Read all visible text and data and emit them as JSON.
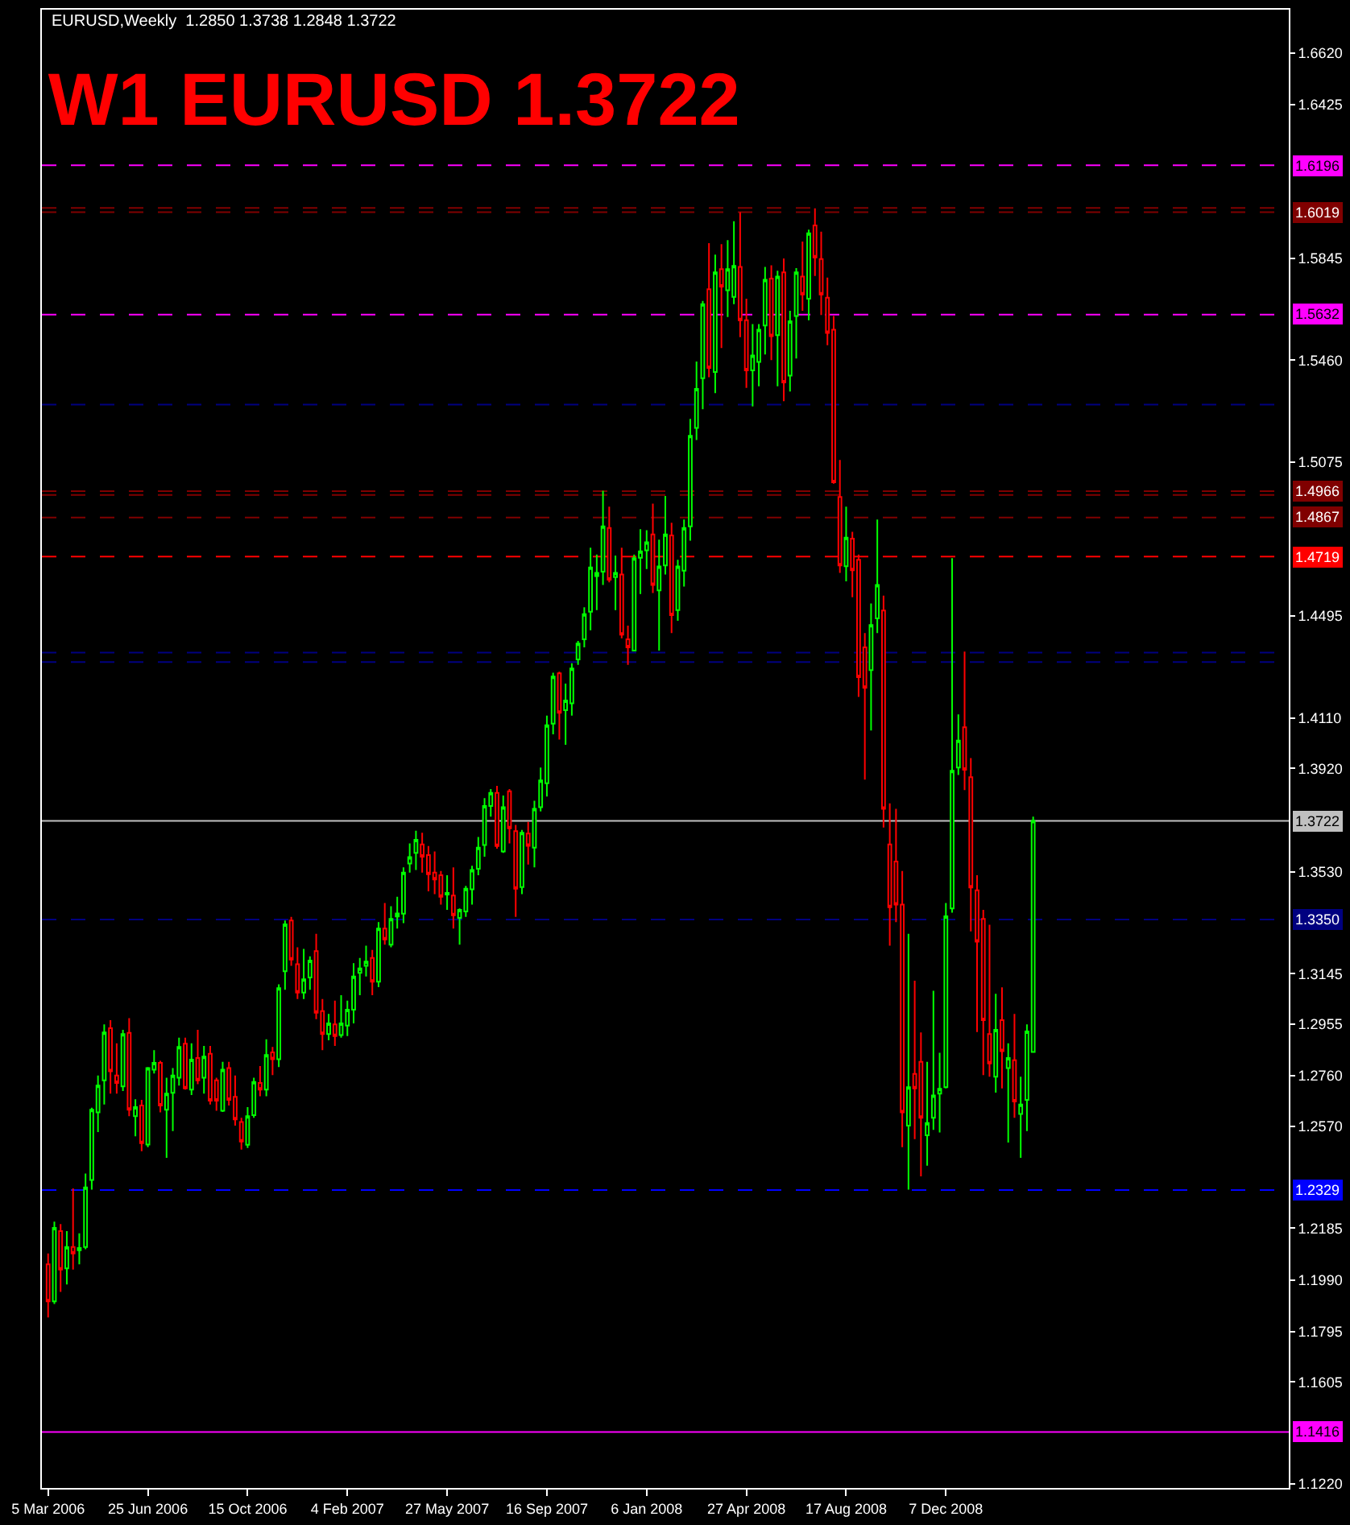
{
  "chart_data": {
    "type": "candlestick",
    "title": "W1 EURUSD 1.3722",
    "subtitle": "EURUSD,Weekly  1.2850 1.3738 1.2848 1.3722",
    "colors": [
      "#ff0000",
      "#00ff00",
      "#ff0000",
      "#00ff00",
      "#ff0000",
      "#00ff00",
      "#00ff00",
      "#00ff00",
      "#00ff00",
      "#00ff00",
      "#ff0000",
      "#ff0000",
      "#00ff00",
      "#ff0000",
      "#00ff00",
      "#ff0000",
      "#00ff00",
      "#00ff00",
      "#ff0000",
      "#00ff00",
      "#00ff00",
      "#00ff00",
      "#ff0000",
      "#00ff00",
      "#ff0000",
      "#00ff00",
      "#ff0000",
      "#ff0000",
      "#00ff00",
      "#ff0000",
      "#ff0000",
      "#ff0000",
      "#00ff00",
      "#00ff00",
      "#ff0000",
      "#00ff00",
      "#ff0000",
      "#00ff00",
      "#00ff00",
      "#ff0000",
      "#ff0000",
      "#00ff00",
      "#00ff00",
      "#ff0000",
      "#ff0000",
      "#00ff00",
      "#ff0000",
      "#00ff00",
      "#00ff00",
      "#00ff00",
      "#00ff00",
      "#00ff00",
      "#ff0000",
      "#00ff00",
      "#ff0000",
      "#00ff00",
      "#00ff00",
      "#00ff00",
      "#00ff00",
      "#00ff00",
      "#ff0000",
      "#ff0000",
      "#ff0000",
      "#ff0000",
      "#00ff00",
      "#ff0000",
      "#00ff00",
      "#00ff00",
      "#00ff00",
      "#00ff00",
      "#00ff00",
      "#00ff00",
      "#ff0000",
      "#00ff00",
      "#ff0000",
      "#ff0000",
      "#00ff00",
      "#ff0000",
      "#00ff00",
      "#00ff00",
      "#00ff00",
      "#00ff00",
      "#ff0000",
      "#00ff00",
      "#00ff00",
      "#00ff00",
      "#00ff00",
      "#00ff00",
      "#00ff00",
      "#00ff00",
      "#ff0000",
      "#00ff00",
      "#ff0000",
      "#ff0000",
      "#00ff00",
      "#00ff00",
      "#00ff00",
      "#ff0000",
      "#00ff00",
      "#00ff00",
      "#ff0000",
      "#00ff00",
      "#00ff00",
      "#00ff00",
      "#00ff00",
      "#00ff00",
      "#ff0000",
      "#00ff00",
      "#ff0000",
      "#00ff00",
      "#00ff00",
      "#ff0000",
      "#ff0000",
      "#00ff00",
      "#00ff00",
      "#00ff00",
      "#ff0000",
      "#00ff00",
      "#ff0000",
      "#00ff00",
      "#00ff00",
      "#ff0000",
      "#00ff00",
      "#ff0000",
      "#ff0000",
      "#ff0000",
      "#ff0000",
      "#ff0000",
      "#00ff00",
      "#ff0000",
      "#ff0000",
      "#ff0000",
      "#00ff00",
      "#00ff00",
      "#ff0000",
      "#ff0000",
      "#ff0000",
      "#ff0000",
      "#00ff00",
      "#ff0000",
      "#ff0000",
      "#00ff00",
      "#00ff00",
      "#00ff00",
      "#00ff00",
      "#00ff00",
      "#00ff00",
      "#ff0000",
      "#ff0000",
      "#ff0000",
      "#ff0000",
      "#ff0000",
      "#00ff00",
      "#ff0000",
      "#00ff00",
      "#ff0000",
      "#00ff00",
      "#00ff00",
      "#00ff00"
    ],
    "x": [
      "2006-03-05",
      "2006-03-12",
      "2006-03-19",
      "2006-03-26",
      "2006-04-02",
      "2006-04-09",
      "2006-04-16",
      "2006-04-23",
      "2006-04-30",
      "2006-05-07",
      "2006-05-14",
      "2006-05-21",
      "2006-05-28",
      "2006-06-04",
      "2006-06-11",
      "2006-06-18",
      "2006-06-25",
      "2006-07-02",
      "2006-07-09",
      "2006-07-16",
      "2006-07-23",
      "2006-07-30",
      "2006-08-06",
      "2006-08-13",
      "2006-08-20",
      "2006-08-27",
      "2006-09-03",
      "2006-09-10",
      "2006-09-17",
      "2006-09-24",
      "2006-10-01",
      "2006-10-08",
      "2006-10-15",
      "2006-10-22",
      "2006-10-29",
      "2006-11-05",
      "2006-11-12",
      "2006-11-19",
      "2006-11-26",
      "2006-12-03",
      "2006-12-10",
      "2006-12-17",
      "2006-12-24",
      "2006-12-31",
      "2007-01-07",
      "2007-01-14",
      "2007-01-21",
      "2007-01-28",
      "2007-02-04",
      "2007-02-11",
      "2007-02-18",
      "2007-02-25",
      "2007-03-04",
      "2007-03-11",
      "2007-03-18",
      "2007-03-25",
      "2007-04-01",
      "2007-04-08",
      "2007-04-15",
      "2007-04-22",
      "2007-04-29",
      "2007-05-06",
      "2007-05-13",
      "2007-05-20",
      "2007-05-27",
      "2007-06-03",
      "2007-06-10",
      "2007-06-17",
      "2007-06-24",
      "2007-07-01",
      "2007-07-08",
      "2007-07-15",
      "2007-07-22",
      "2007-07-29",
      "2007-08-05",
      "2007-08-12",
      "2007-08-19",
      "2007-08-26",
      "2007-09-02",
      "2007-09-09",
      "2007-09-16",
      "2007-09-23",
      "2007-09-30",
      "2007-10-07",
      "2007-10-14",
      "2007-10-21",
      "2007-10-28",
      "2007-11-04",
      "2007-11-11",
      "2007-11-18",
      "2007-11-25",
      "2007-12-02",
      "2007-12-09",
      "2007-12-16",
      "2007-12-23",
      "2007-12-30",
      "2008-01-06",
      "2008-01-13",
      "2008-01-20",
      "2008-01-27",
      "2008-02-03",
      "2008-02-10",
      "2008-02-17",
      "2008-02-24",
      "2008-03-02",
      "2008-03-09",
      "2008-03-16",
      "2008-03-23",
      "2008-03-30",
      "2008-04-06",
      "2008-04-13",
      "2008-04-20",
      "2008-04-27",
      "2008-05-04",
      "2008-05-11",
      "2008-05-18",
      "2008-05-25",
      "2008-06-01",
      "2008-06-08",
      "2008-06-15",
      "2008-06-22",
      "2008-06-29",
      "2008-07-06",
      "2008-07-13",
      "2008-07-20",
      "2008-07-27",
      "2008-08-03",
      "2008-08-10",
      "2008-08-17",
      "2008-08-24",
      "2008-08-31",
      "2008-09-07",
      "2008-09-14",
      "2008-09-21",
      "2008-09-28",
      "2008-10-05",
      "2008-10-12",
      "2008-10-19",
      "2008-10-26",
      "2008-11-02",
      "2008-11-09",
      "2008-11-16",
      "2008-11-23",
      "2008-11-30",
      "2008-12-07",
      "2008-12-14",
      "2008-12-21",
      "2008-12-28",
      "2009-01-04",
      "2009-01-11",
      "2009-01-18",
      "2009-01-25",
      "2009-02-01",
      "2009-02-08",
      "2009-02-15",
      "2009-02-22",
      "2009-03-01",
      "2009-03-08",
      "2009-03-15"
    ],
    "ohlc": [
      [
        1.2049,
        1.209,
        1.1848,
        1.1909
      ],
      [
        1.1909,
        1.221,
        1.1899,
        1.2186
      ],
      [
        1.2174,
        1.2201,
        1.1945,
        1.2029
      ],
      [
        1.2034,
        1.2174,
        1.1973,
        1.2114
      ],
      [
        1.2114,
        1.2335,
        1.2029,
        1.209
      ],
      [
        1.2102,
        1.2166,
        1.2049,
        1.211
      ],
      [
        1.2114,
        1.2391,
        1.2106,
        1.2339
      ],
      [
        1.2367,
        1.264,
        1.2331,
        1.2632
      ],
      [
        1.2622,
        1.2761,
        1.2548,
        1.2723
      ],
      [
        1.2743,
        1.2954,
        1.2652,
        1.2924
      ],
      [
        1.294,
        1.297,
        1.2693,
        1.2777
      ],
      [
        1.2761,
        1.2883,
        1.2693,
        1.2733
      ],
      [
        1.272,
        1.2934,
        1.2703,
        1.2918
      ],
      [
        1.2922,
        1.2978,
        1.2608,
        1.2632
      ],
      [
        1.2608,
        1.2672,
        1.2532,
        1.2642
      ],
      [
        1.2648,
        1.2669,
        1.2476,
        1.2506
      ],
      [
        1.2501,
        1.2793,
        1.2491,
        1.2789
      ],
      [
        1.2783,
        1.2857,
        1.2769,
        1.2809
      ],
      [
        1.2809,
        1.2817,
        1.2622,
        1.2648
      ],
      [
        1.2632,
        1.2753,
        1.2451,
        1.2693
      ],
      [
        1.2696,
        1.2789,
        1.2552,
        1.2761
      ],
      [
        1.2753,
        1.2904,
        1.2723,
        1.2869
      ],
      [
        1.2881,
        1.2904,
        1.2708,
        1.2713
      ],
      [
        1.2708,
        1.2883,
        1.2688,
        1.2821
      ],
      [
        1.2827,
        1.2934,
        1.2729,
        1.2743
      ],
      [
        1.2753,
        1.2873,
        1.2693,
        1.2833
      ],
      [
        1.2843,
        1.2873,
        1.2652,
        1.2666
      ],
      [
        1.2743,
        1.2753,
        1.2628,
        1.2666
      ],
      [
        1.2628,
        1.2813,
        1.2624,
        1.2783
      ],
      [
        1.2789,
        1.2813,
        1.2648,
        1.2669
      ],
      [
        1.2681,
        1.2761,
        1.2572,
        1.2596
      ],
      [
        1.2586,
        1.2602,
        1.2482,
        1.2512
      ],
      [
        1.25,
        1.2642,
        1.2488,
        1.2608
      ],
      [
        1.2612,
        1.2753,
        1.2602,
        1.2737
      ],
      [
        1.2733,
        1.2797,
        1.2683,
        1.2708
      ],
      [
        1.2708,
        1.2898,
        1.2683,
        1.2839
      ],
      [
        1.2849,
        1.2869,
        1.2763,
        1.2823
      ],
      [
        1.2823,
        1.3105,
        1.2793,
        1.3091
      ],
      [
        1.3155,
        1.3346,
        1.3085,
        1.3332
      ],
      [
        1.3346,
        1.336,
        1.3175,
        1.3199
      ],
      [
        1.3181,
        1.3245,
        1.305,
        1.3074
      ],
      [
        1.3074,
        1.3239,
        1.305,
        1.3124
      ],
      [
        1.3131,
        1.3211,
        1.3085,
        1.3195
      ],
      [
        1.3231,
        1.3296,
        1.2974,
        1.2998
      ],
      [
        1.3004,
        1.305,
        1.2857,
        1.2918
      ],
      [
        1.2918,
        1.2994,
        1.2894,
        1.2958
      ],
      [
        1.2954,
        1.3044,
        1.2873,
        1.291
      ],
      [
        1.2914,
        1.3064,
        1.2904,
        1.2958
      ],
      [
        1.295,
        1.3044,
        1.291,
        1.301
      ],
      [
        1.301,
        1.3185,
        1.2958,
        1.3135
      ],
      [
        1.3149,
        1.3205,
        1.3064,
        1.3165
      ],
      [
        1.3175,
        1.3251,
        1.3135,
        1.3191
      ],
      [
        1.3205,
        1.3235,
        1.3064,
        1.3115
      ],
      [
        1.3115,
        1.334,
        1.3095,
        1.3316
      ],
      [
        1.3316,
        1.3412,
        1.3255,
        1.3275
      ],
      [
        1.3255,
        1.34,
        1.3245,
        1.3352
      ],
      [
        1.3361,
        1.3436,
        1.3316,
        1.3373
      ],
      [
        1.3372,
        1.3547,
        1.3336,
        1.3527
      ],
      [
        1.3561,
        1.3637,
        1.3527,
        1.3585
      ],
      [
        1.3601,
        1.3685,
        1.3537,
        1.3651
      ],
      [
        1.3633,
        1.3677,
        1.3527,
        1.3587
      ],
      [
        1.3593,
        1.3627,
        1.3456,
        1.3521
      ],
      [
        1.3527,
        1.3607,
        1.3446,
        1.3501
      ],
      [
        1.3517,
        1.3533,
        1.3406,
        1.3436
      ],
      [
        1.3444,
        1.3517,
        1.3386,
        1.345
      ],
      [
        1.344,
        1.3547,
        1.3316,
        1.3366
      ],
      [
        1.3356,
        1.3392,
        1.3255,
        1.3386
      ],
      [
        1.338,
        1.3477,
        1.336,
        1.3466
      ],
      [
        1.3464,
        1.3553,
        1.3406,
        1.3537
      ],
      [
        1.3541,
        1.3661,
        1.3517,
        1.3621
      ],
      [
        1.3631,
        1.3808,
        1.3587,
        1.3778
      ],
      [
        1.3778,
        1.3842,
        1.3738,
        1.3828
      ],
      [
        1.3828,
        1.3854,
        1.3617,
        1.3627
      ],
      [
        1.3607,
        1.3818,
        1.3601,
        1.3774
      ],
      [
        1.3834,
        1.3842,
        1.3637,
        1.3694
      ],
      [
        1.3683,
        1.3707,
        1.336,
        1.3466
      ],
      [
        1.3472,
        1.3688,
        1.3446,
        1.3677
      ],
      [
        1.3674,
        1.3718,
        1.3557,
        1.3628
      ],
      [
        1.3621,
        1.3798,
        1.3547,
        1.3768
      ],
      [
        1.3774,
        1.3923,
        1.3758,
        1.3875
      ],
      [
        1.3864,
        1.4119,
        1.3814,
        1.4083
      ],
      [
        1.4089,
        1.4281,
        1.4049,
        1.4267
      ],
      [
        1.4279,
        1.4285,
        1.4029,
        1.413
      ],
      [
        1.414,
        1.424,
        1.4009,
        1.4176
      ],
      [
        1.4166,
        1.4317,
        1.4119,
        1.4297
      ],
      [
        1.4331,
        1.4401,
        1.4311,
        1.4391
      ],
      [
        1.4407,
        1.4528,
        1.4377,
        1.4502
      ],
      [
        1.4511,
        1.4753,
        1.4441,
        1.4678
      ],
      [
        1.4646,
        1.4727,
        1.4517,
        1.4658
      ],
      [
        1.4662,
        1.4968,
        1.4612,
        1.4833
      ],
      [
        1.4827,
        1.4908,
        1.4622,
        1.4632
      ],
      [
        1.4642,
        1.4723,
        1.4517,
        1.4658
      ],
      [
        1.4652,
        1.4753,
        1.4411,
        1.4425
      ],
      [
        1.4407,
        1.4459,
        1.4311,
        1.4377
      ],
      [
        1.4365,
        1.4727,
        1.4365,
        1.4713
      ],
      [
        1.4715,
        1.4823,
        1.4578,
        1.4739
      ],
      [
        1.4743,
        1.4819,
        1.4672,
        1.4773
      ],
      [
        1.4803,
        1.4919,
        1.4582,
        1.4612
      ],
      [
        1.4592,
        1.4783,
        1.4365,
        1.4682
      ],
      [
        1.4686,
        1.4948,
        1.4652,
        1.4803
      ],
      [
        1.4799,
        1.4847,
        1.4431,
        1.4498
      ],
      [
        1.4517,
        1.4707,
        1.4477,
        1.4682
      ],
      [
        1.4666,
        1.4859,
        1.4606,
        1.4827
      ],
      [
        1.4833,
        1.5239,
        1.4779,
        1.5175
      ],
      [
        1.5205,
        1.5455,
        1.5159,
        1.5352
      ],
      [
        1.5392,
        1.5684,
        1.5275,
        1.5672
      ],
      [
        1.5728,
        1.5902,
        1.5396,
        1.5431
      ],
      [
        1.5416,
        1.5859,
        1.5336,
        1.5792
      ],
      [
        1.5804,
        1.5898,
        1.5506,
        1.5738
      ],
      [
        1.5724,
        1.5913,
        1.5623,
        1.5804
      ],
      [
        1.5699,
        1.5985,
        1.5672,
        1.5816
      ],
      [
        1.5812,
        1.6019,
        1.5547,
        1.5611
      ],
      [
        1.5611,
        1.5692,
        1.5356,
        1.5422
      ],
      [
        1.5422,
        1.5597,
        1.5286,
        1.5478
      ],
      [
        1.5454,
        1.5597,
        1.5362,
        1.5575
      ],
      [
        1.5591,
        1.5812,
        1.5482,
        1.5764
      ],
      [
        1.5768,
        1.5818,
        1.5461,
        1.5551
      ],
      [
        1.5555,
        1.5798,
        1.5362,
        1.5776
      ],
      [
        1.5792,
        1.5844,
        1.5306,
        1.5376
      ],
      [
        1.5402,
        1.5647,
        1.5342,
        1.5607
      ],
      [
        1.5627,
        1.5808,
        1.5467,
        1.5792
      ],
      [
        1.5776,
        1.5908,
        1.5647,
        1.5708
      ],
      [
        1.5692,
        1.5953,
        1.5611,
        1.5939
      ],
      [
        1.5969,
        1.6033,
        1.5778,
        1.5848
      ],
      [
        1.5842,
        1.5945,
        1.5631,
        1.5708
      ],
      [
        1.5696,
        1.5772,
        1.5517,
        1.5563
      ],
      [
        1.5575,
        1.5627,
        1.4994,
        1.5
      ],
      [
        1.4944,
        1.5084,
        1.4658,
        1.4686
      ],
      [
        1.4683,
        1.4908,
        1.4626,
        1.4791
      ],
      [
        1.4787,
        1.4813,
        1.4566,
        1.4668
      ],
      [
        1.4707,
        1.4727,
        1.419,
        1.4264
      ],
      [
        1.4377,
        1.4431,
        1.3878,
        1.4224
      ],
      [
        1.4291,
        1.4542,
        1.4063,
        1.4461
      ],
      [
        1.4486,
        1.4859,
        1.4431,
        1.4612
      ],
      [
        1.4516,
        1.4572,
        1.3697,
        1.3768
      ],
      [
        1.3633,
        1.3788,
        1.3251,
        1.3396
      ],
      [
        1.3569,
        1.3768,
        1.334,
        1.3406
      ],
      [
        1.3406,
        1.3533,
        1.2491,
        1.2622
      ],
      [
        1.2572,
        1.3296,
        1.2331,
        1.2717
      ],
      [
        1.2767,
        1.3119,
        1.2521,
        1.2713
      ],
      [
        1.2813,
        1.2924,
        1.2381,
        1.2602
      ],
      [
        1.2536,
        1.2813,
        1.2421,
        1.2582
      ],
      [
        1.2602,
        1.3081,
        1.2556,
        1.2686
      ],
      [
        1.2693,
        1.2847,
        1.2546,
        1.2711
      ],
      [
        1.2717,
        1.3412,
        1.2713,
        1.3362
      ],
      [
        1.3392,
        1.4713,
        1.3376,
        1.3911
      ],
      [
        1.3923,
        1.4124,
        1.3895,
        1.4025
      ],
      [
        1.4075,
        1.4361,
        1.3838,
        1.3915
      ],
      [
        1.3887,
        1.3959,
        1.3305,
        1.3471
      ],
      [
        1.346,
        1.3517,
        1.2925,
        1.3266
      ],
      [
        1.3352,
        1.3386,
        1.2763,
        1.297
      ],
      [
        1.2918,
        1.333,
        1.2757,
        1.2807
      ],
      [
        1.2757,
        1.307,
        1.2697,
        1.2934
      ],
      [
        1.297,
        1.3094,
        1.2713,
        1.2853
      ],
      [
        1.2789,
        1.2883,
        1.2508,
        1.2827
      ],
      [
        1.2819,
        1.2994,
        1.2602,
        1.2663
      ],
      [
        1.2616,
        1.2757,
        1.2451,
        1.2652
      ],
      [
        1.2669,
        1.2954,
        1.2552,
        1.2928
      ],
      [
        1.285,
        1.3738,
        1.2848,
        1.3722
      ]
    ],
    "xlim": [
      "2006-02-26",
      "2009-12-27"
    ],
    "xticks": [
      {
        "value": "2006-03-05",
        "label": "5 Mar 2006"
      },
      {
        "value": "2006-06-25",
        "label": "25 Jun 2006"
      },
      {
        "value": "2006-10-15",
        "label": "15 Oct 2006"
      },
      {
        "value": "2007-02-04",
        "label": "4 Feb 2007"
      },
      {
        "value": "2007-05-27",
        "label": "27 May 2007"
      },
      {
        "value": "2007-09-16",
        "label": "16 Sep 2007"
      },
      {
        "value": "2008-01-06",
        "label": "6 Jan 2008"
      },
      {
        "value": "2008-04-27",
        "label": "27 Apr 2008"
      },
      {
        "value": "2008-08-17",
        "label": "17 Aug 2008"
      },
      {
        "value": "2008-12-07",
        "label": "7 Dec 2008"
      }
    ],
    "ylim": [
      1.1205,
      1.6783
    ],
    "yticks": [
      {
        "value": 1.122,
        "label": "1.1220"
      },
      {
        "value": 1.1605,
        "label": "1.1605"
      },
      {
        "value": 1.1795,
        "label": "1.1795"
      },
      {
        "value": 1.199,
        "label": "1.1990"
      },
      {
        "value": 1.2185,
        "label": "1.2185"
      },
      {
        "value": 1.257,
        "label": "1.2570"
      },
      {
        "value": 1.276,
        "label": "1.2760"
      },
      {
        "value": 1.2955,
        "label": "1.2955"
      },
      {
        "value": 1.3145,
        "label": "1.3145"
      },
      {
        "value": 1.353,
        "label": "1.3530"
      },
      {
        "value": 1.392,
        "label": "1.3920"
      },
      {
        "value": 1.411,
        "label": "1.4110"
      },
      {
        "value": 1.4495,
        "label": "1.4495"
      },
      {
        "value": 1.5075,
        "label": "1.5075"
      },
      {
        "value": 1.546,
        "label": "1.5460"
      },
      {
        "value": 1.5845,
        "label": "1.5845"
      },
      {
        "value": 1.6425,
        "label": "1.6425"
      },
      {
        "value": 1.662,
        "label": "1.6620"
      }
    ],
    "ref_lines": [
      {
        "axis": "y",
        "value": 1.6196,
        "label": "1.6196",
        "color": "#ff00ff",
        "line_style": "dashed"
      },
      {
        "axis": "y",
        "value": 1.6035,
        "color": "#800000",
        "line_style": "dashed"
      },
      {
        "axis": "y",
        "value": 1.6019,
        "label": "1.6019",
        "color": "#800000",
        "line_style": "dashed"
      },
      {
        "axis": "y",
        "value": 1.5632,
        "label": "1.5632",
        "color": "#ff00ff",
        "line_style": "dashed"
      },
      {
        "axis": "y",
        "value": 1.5293,
        "color": "#000080",
        "line_style": "dashed"
      },
      {
        "axis": "y",
        "value": 1.4966,
        "label": "1.4966",
        "color": "#800000",
        "line_style": "dashed"
      },
      {
        "axis": "y",
        "value": 1.4952,
        "color": "#800000",
        "line_style": "dashed"
      },
      {
        "axis": "y",
        "value": 1.4867,
        "label": "1.4867",
        "color": "#800000",
        "line_style": "dashed"
      },
      {
        "axis": "y",
        "value": 1.4719,
        "label": "1.4719",
        "color": "#ff0000",
        "line_style": "dashed"
      },
      {
        "axis": "y",
        "value": 1.4357,
        "color": "#000080",
        "line_style": "dashed"
      },
      {
        "axis": "y",
        "value": 1.4321,
        "color": "#000080",
        "line_style": "dashed"
      },
      {
        "axis": "y",
        "value": 1.3722,
        "label": "1.3722",
        "color": "#c0c0c0",
        "line_style": "solid"
      },
      {
        "axis": "y",
        "value": 1.335,
        "label": "1.3350",
        "color": "#000080",
        "line_style": "dashed"
      },
      {
        "axis": "y",
        "value": 1.2329,
        "label": "1.2329",
        "color": "#0000ff",
        "line_style": "dashed"
      },
      {
        "axis": "y",
        "value": 1.1416,
        "label": "1.1416",
        "color": "#ff00ff",
        "line_style": "solid"
      }
    ],
    "grid": false
  }
}
